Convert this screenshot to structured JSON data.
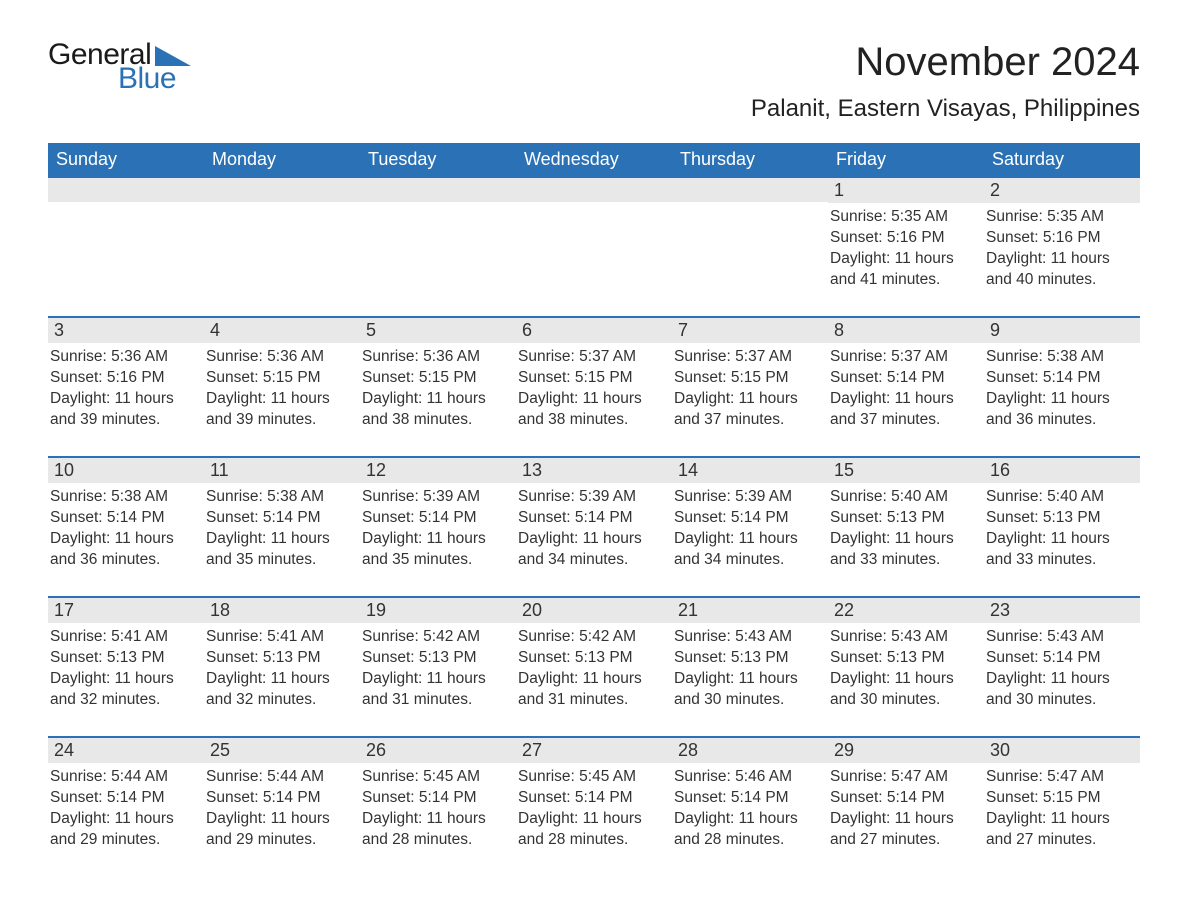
{
  "logo": {
    "text_general": "General",
    "text_blue": "Blue",
    "shape_color": "#2a72b5"
  },
  "title": "November 2024",
  "location": "Palanit, Eastern Visayas, Philippines",
  "colors": {
    "header_bg": "#2a72b5",
    "header_text": "#ffffff",
    "day_number_bg": "#e8e8e8",
    "week_border": "#2a72b5",
    "text": "#333333",
    "background": "#ffffff"
  },
  "typography": {
    "title_fontsize": 40,
    "location_fontsize": 24,
    "header_fontsize": 18,
    "daynum_fontsize": 18,
    "body_fontsize": 15.5
  },
  "day_headers": [
    "Sunday",
    "Monday",
    "Tuesday",
    "Wednesday",
    "Thursday",
    "Friday",
    "Saturday"
  ],
  "weeks": [
    [
      {
        "num": "",
        "sunrise": "",
        "sunset": "",
        "daylight": ""
      },
      {
        "num": "",
        "sunrise": "",
        "sunset": "",
        "daylight": ""
      },
      {
        "num": "",
        "sunrise": "",
        "sunset": "",
        "daylight": ""
      },
      {
        "num": "",
        "sunrise": "",
        "sunset": "",
        "daylight": ""
      },
      {
        "num": "",
        "sunrise": "",
        "sunset": "",
        "daylight": ""
      },
      {
        "num": "1",
        "sunrise": "Sunrise: 5:35 AM",
        "sunset": "Sunset: 5:16 PM",
        "daylight": "Daylight: 11 hours and 41 minutes."
      },
      {
        "num": "2",
        "sunrise": "Sunrise: 5:35 AM",
        "sunset": "Sunset: 5:16 PM",
        "daylight": "Daylight: 11 hours and 40 minutes."
      }
    ],
    [
      {
        "num": "3",
        "sunrise": "Sunrise: 5:36 AM",
        "sunset": "Sunset: 5:16 PM",
        "daylight": "Daylight: 11 hours and 39 minutes."
      },
      {
        "num": "4",
        "sunrise": "Sunrise: 5:36 AM",
        "sunset": "Sunset: 5:15 PM",
        "daylight": "Daylight: 11 hours and 39 minutes."
      },
      {
        "num": "5",
        "sunrise": "Sunrise: 5:36 AM",
        "sunset": "Sunset: 5:15 PM",
        "daylight": "Daylight: 11 hours and 38 minutes."
      },
      {
        "num": "6",
        "sunrise": "Sunrise: 5:37 AM",
        "sunset": "Sunset: 5:15 PM",
        "daylight": "Daylight: 11 hours and 38 minutes."
      },
      {
        "num": "7",
        "sunrise": "Sunrise: 5:37 AM",
        "sunset": "Sunset: 5:15 PM",
        "daylight": "Daylight: 11 hours and 37 minutes."
      },
      {
        "num": "8",
        "sunrise": "Sunrise: 5:37 AM",
        "sunset": "Sunset: 5:14 PM",
        "daylight": "Daylight: 11 hours and 37 minutes."
      },
      {
        "num": "9",
        "sunrise": "Sunrise: 5:38 AM",
        "sunset": "Sunset: 5:14 PM",
        "daylight": "Daylight: 11 hours and 36 minutes."
      }
    ],
    [
      {
        "num": "10",
        "sunrise": "Sunrise: 5:38 AM",
        "sunset": "Sunset: 5:14 PM",
        "daylight": "Daylight: 11 hours and 36 minutes."
      },
      {
        "num": "11",
        "sunrise": "Sunrise: 5:38 AM",
        "sunset": "Sunset: 5:14 PM",
        "daylight": "Daylight: 11 hours and 35 minutes."
      },
      {
        "num": "12",
        "sunrise": "Sunrise: 5:39 AM",
        "sunset": "Sunset: 5:14 PM",
        "daylight": "Daylight: 11 hours and 35 minutes."
      },
      {
        "num": "13",
        "sunrise": "Sunrise: 5:39 AM",
        "sunset": "Sunset: 5:14 PM",
        "daylight": "Daylight: 11 hours and 34 minutes."
      },
      {
        "num": "14",
        "sunrise": "Sunrise: 5:39 AM",
        "sunset": "Sunset: 5:14 PM",
        "daylight": "Daylight: 11 hours and 34 minutes."
      },
      {
        "num": "15",
        "sunrise": "Sunrise: 5:40 AM",
        "sunset": "Sunset: 5:13 PM",
        "daylight": "Daylight: 11 hours and 33 minutes."
      },
      {
        "num": "16",
        "sunrise": "Sunrise: 5:40 AM",
        "sunset": "Sunset: 5:13 PM",
        "daylight": "Daylight: 11 hours and 33 minutes."
      }
    ],
    [
      {
        "num": "17",
        "sunrise": "Sunrise: 5:41 AM",
        "sunset": "Sunset: 5:13 PM",
        "daylight": "Daylight: 11 hours and 32 minutes."
      },
      {
        "num": "18",
        "sunrise": "Sunrise: 5:41 AM",
        "sunset": "Sunset: 5:13 PM",
        "daylight": "Daylight: 11 hours and 32 minutes."
      },
      {
        "num": "19",
        "sunrise": "Sunrise: 5:42 AM",
        "sunset": "Sunset: 5:13 PM",
        "daylight": "Daylight: 11 hours and 31 minutes."
      },
      {
        "num": "20",
        "sunrise": "Sunrise: 5:42 AM",
        "sunset": "Sunset: 5:13 PM",
        "daylight": "Daylight: 11 hours and 31 minutes."
      },
      {
        "num": "21",
        "sunrise": "Sunrise: 5:43 AM",
        "sunset": "Sunset: 5:13 PM",
        "daylight": "Daylight: 11 hours and 30 minutes."
      },
      {
        "num": "22",
        "sunrise": "Sunrise: 5:43 AM",
        "sunset": "Sunset: 5:13 PM",
        "daylight": "Daylight: 11 hours and 30 minutes."
      },
      {
        "num": "23",
        "sunrise": "Sunrise: 5:43 AM",
        "sunset": "Sunset: 5:14 PM",
        "daylight": "Daylight: 11 hours and 30 minutes."
      }
    ],
    [
      {
        "num": "24",
        "sunrise": "Sunrise: 5:44 AM",
        "sunset": "Sunset: 5:14 PM",
        "daylight": "Daylight: 11 hours and 29 minutes."
      },
      {
        "num": "25",
        "sunrise": "Sunrise: 5:44 AM",
        "sunset": "Sunset: 5:14 PM",
        "daylight": "Daylight: 11 hours and 29 minutes."
      },
      {
        "num": "26",
        "sunrise": "Sunrise: 5:45 AM",
        "sunset": "Sunset: 5:14 PM",
        "daylight": "Daylight: 11 hours and 28 minutes."
      },
      {
        "num": "27",
        "sunrise": "Sunrise: 5:45 AM",
        "sunset": "Sunset: 5:14 PM",
        "daylight": "Daylight: 11 hours and 28 minutes."
      },
      {
        "num": "28",
        "sunrise": "Sunrise: 5:46 AM",
        "sunset": "Sunset: 5:14 PM",
        "daylight": "Daylight: 11 hours and 28 minutes."
      },
      {
        "num": "29",
        "sunrise": "Sunrise: 5:47 AM",
        "sunset": "Sunset: 5:14 PM",
        "daylight": "Daylight: 11 hours and 27 minutes."
      },
      {
        "num": "30",
        "sunrise": "Sunrise: 5:47 AM",
        "sunset": "Sunset: 5:15 PM",
        "daylight": "Daylight: 11 hours and 27 minutes."
      }
    ]
  ]
}
